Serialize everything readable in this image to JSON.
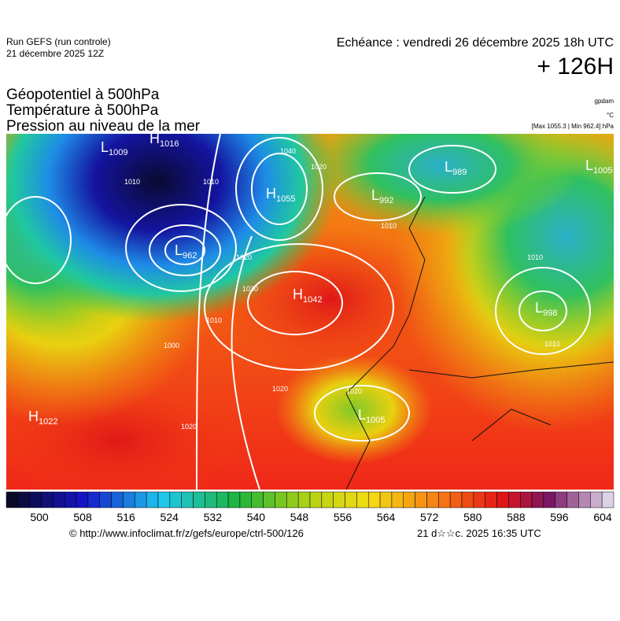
{
  "header": {
    "run": "Run GEFS (run controle)",
    "run_date": "21 décembre 2025 12Z",
    "valid_time": "Echéance : vendredi 26 décembre 2025 18h UTC",
    "lead": "+ 126H"
  },
  "layers": [
    "Géopotentiel à 500hPa",
    "Température à 500hPa",
    "Pression au niveau de la mer"
  ],
  "units": [
    "gpdam",
    "°C",
    "[Max 1055.3 | Min 962.4] hPa"
  ],
  "pressure_centers": [
    {
      "kind": "L",
      "value": 1009
    },
    {
      "kind": "H",
      "value": 1016
    },
    {
      "kind": "H",
      "value": 1055
    },
    {
      "kind": "L",
      "value": 989
    },
    {
      "kind": "L",
      "value": 1005
    },
    {
      "kind": "L",
      "value": 962
    },
    {
      "kind": "L",
      "value": 992
    },
    {
      "kind": "H",
      "value": 1042
    },
    {
      "kind": "L",
      "value": 998
    },
    {
      "kind": "H",
      "value": 1022
    },
    {
      "kind": "L",
      "value": 1005
    }
  ],
  "isobar_labels": [
    1010,
    1010,
    1040,
    1020,
    1030,
    1020,
    1010,
    1000,
    1020,
    1010,
    1020,
    1010,
    1010,
    1020
  ],
  "colorbar_labels": [
    500,
    508,
    516,
    524,
    532,
    540,
    548,
    556,
    564,
    572,
    580,
    588,
    596,
    604
  ],
  "footer": {
    "source": "© http://www.infoclimat.fr/z/gefs/europe/ctrl-500/126",
    "generated": "21 d☆☆c. 2025 16:35 UTC"
  }
}
